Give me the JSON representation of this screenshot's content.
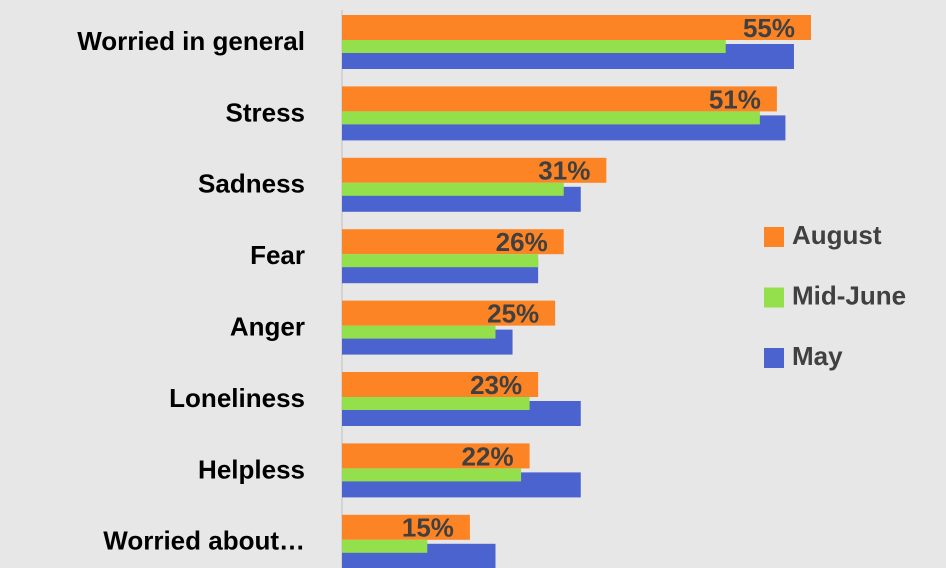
{
  "chart_data": {
    "type": "bar",
    "orientation": "horizontal",
    "categories": [
      "Worried in general",
      "Stress",
      "Sadness",
      "Fear",
      "Anger",
      "Loneliness",
      "Helpless",
      "Worried about…"
    ],
    "series": [
      {
        "name": "August",
        "color": "#fd8424",
        "values": [
          55,
          51,
          31,
          26,
          25,
          23,
          22,
          15
        ],
        "value_labels": [
          "55%",
          "51%",
          "31%",
          "26%",
          "25%",
          "23%",
          "22%",
          "15%"
        ]
      },
      {
        "name": "Mid-June",
        "color": "#93e04c",
        "values": [
          45,
          49,
          26,
          23,
          18,
          22,
          21,
          10
        ]
      },
      {
        "name": "May",
        "color": "#4a63cf",
        "values": [
          53,
          52,
          28,
          23,
          20,
          28,
          28,
          18
        ]
      }
    ],
    "xlim": [
      0,
      55
    ],
    "legend": "right"
  }
}
